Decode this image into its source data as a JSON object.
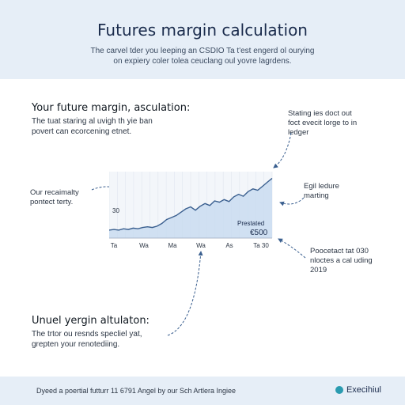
{
  "header": {
    "title": "Futures margin calculation",
    "subtitle_lines": [
      "The carvel tder you leeping an CSDIO Ta t'est engerd ol ourying",
      "on expiery coler tolea ceuclang oul yovre lagrdens."
    ]
  },
  "section_top": {
    "heading": "Your future margin, asculation:",
    "body_lines": [
      "The tuat staring al uvigh th yie ban",
      "povert can ecorcening etnet."
    ]
  },
  "notes": {
    "left": [
      "Our recaimalty",
      "pontect terty."
    ],
    "top_right": [
      "Stating ies doct out",
      "foct evecit lorge to in",
      "ledger"
    ],
    "mid_right": [
      "Egil ledure",
      "marting"
    ],
    "bottom_right": [
      "Poocetact tat 030",
      "nloctes a cal uding",
      "2019"
    ]
  },
  "section_bottom": {
    "heading": "Unuel yergin altulaton:",
    "body_lines": [
      "The trtor ou resnds specliel yat,",
      "grepten your renotediing."
    ]
  },
  "chart_data": {
    "type": "area",
    "x_tick_labels": [
      "Ta",
      "Wa",
      "Ma",
      "Wa",
      "As",
      "Ta 30"
    ],
    "y_label": "30",
    "annotation": [
      "Prestated",
      "€500"
    ],
    "values": [
      12,
      13,
      12,
      14,
      13,
      15,
      14,
      16,
      17,
      16,
      18,
      22,
      28,
      31,
      34,
      39,
      44,
      47,
      42,
      48,
      52,
      49,
      56,
      54,
      58,
      55,
      62,
      66,
      63,
      70,
      74,
      72,
      78,
      84,
      90
    ],
    "ylim": [
      0,
      100
    ],
    "line_color": "#3a5f8f",
    "fill_color": "#c9dcf0",
    "grid": true
  },
  "footer": {
    "text": "Dyeed a poertial futturr 11 6791 Angel by our Sch Artlera Ingiee",
    "brand": "Execihiul",
    "brand_color": "#2a9bb0"
  }
}
